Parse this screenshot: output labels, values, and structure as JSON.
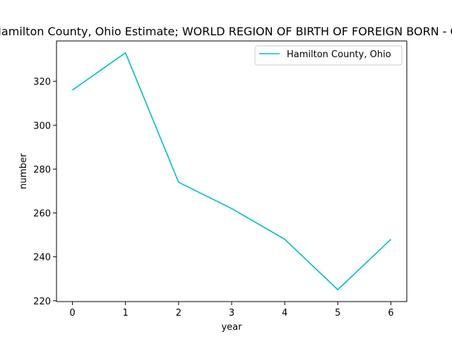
{
  "chart_data": {
    "type": "line",
    "title": "Hamilton County, Ohio Estimate; WORLD REGION OF BIRTH OF FOREIGN BORN - O",
    "xlabel": "year",
    "ylabel": "number",
    "x": [
      0,
      1,
      2,
      3,
      4,
      5,
      6
    ],
    "series": [
      {
        "name": "Hamilton County, Ohio",
        "values": [
          316,
          333,
          274,
          262,
          248,
          225,
          248
        ],
        "color": "#00bfbf"
      }
    ],
    "xlim": [
      -0.3,
      6.3
    ],
    "ylim": [
      219.6,
      338.4
    ],
    "xticks": [
      0,
      1,
      2,
      3,
      4,
      5,
      6
    ],
    "yticks": [
      220,
      240,
      260,
      280,
      300,
      320
    ],
    "grid": false,
    "legend_position": "top-right"
  }
}
